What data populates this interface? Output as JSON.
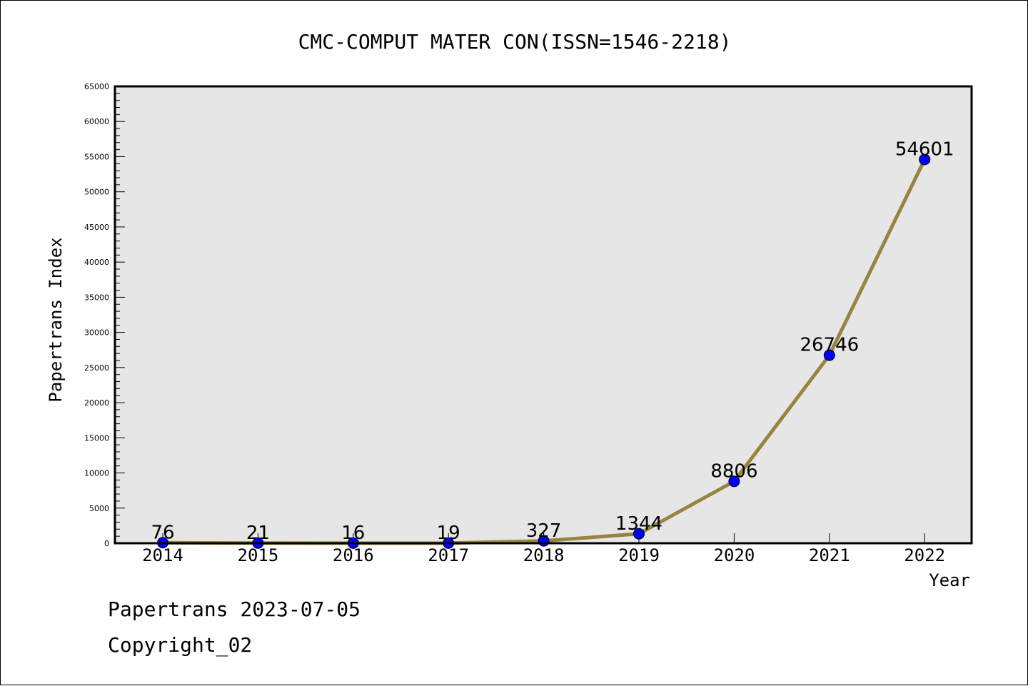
{
  "chart_data": {
    "type": "line",
    "title": "CMC-COMPUT MATER CON(ISSN=1546-2218)",
    "xlabel": "Year",
    "ylabel": "Papertrans Index",
    "categories": [
      "2014",
      "2015",
      "2016",
      "2017",
      "2018",
      "2019",
      "2020",
      "2021",
      "2022"
    ],
    "values": [
      76,
      21,
      16,
      19,
      327,
      1344,
      8806,
      26746,
      54601
    ],
    "data_labels": [
      "76",
      "21",
      "16",
      "19",
      "327",
      "1344",
      "8806",
      "26746",
      "54601"
    ],
    "ylim": [
      0,
      65000
    ],
    "y_ticks": [
      "0",
      "5000",
      "10000",
      "15000",
      "20000",
      "25000",
      "30000",
      "35000",
      "40000",
      "45000",
      "50000",
      "55000",
      "60000",
      "65000"
    ],
    "grid": false,
    "legend": "none",
    "colors": {
      "line": "#978440",
      "marker": "#0000ff",
      "plot_background": "#e6e6e6"
    }
  },
  "footer": {
    "date_line": "Papertrans 2023-07-05",
    "copyright": "Copyright_02"
  }
}
